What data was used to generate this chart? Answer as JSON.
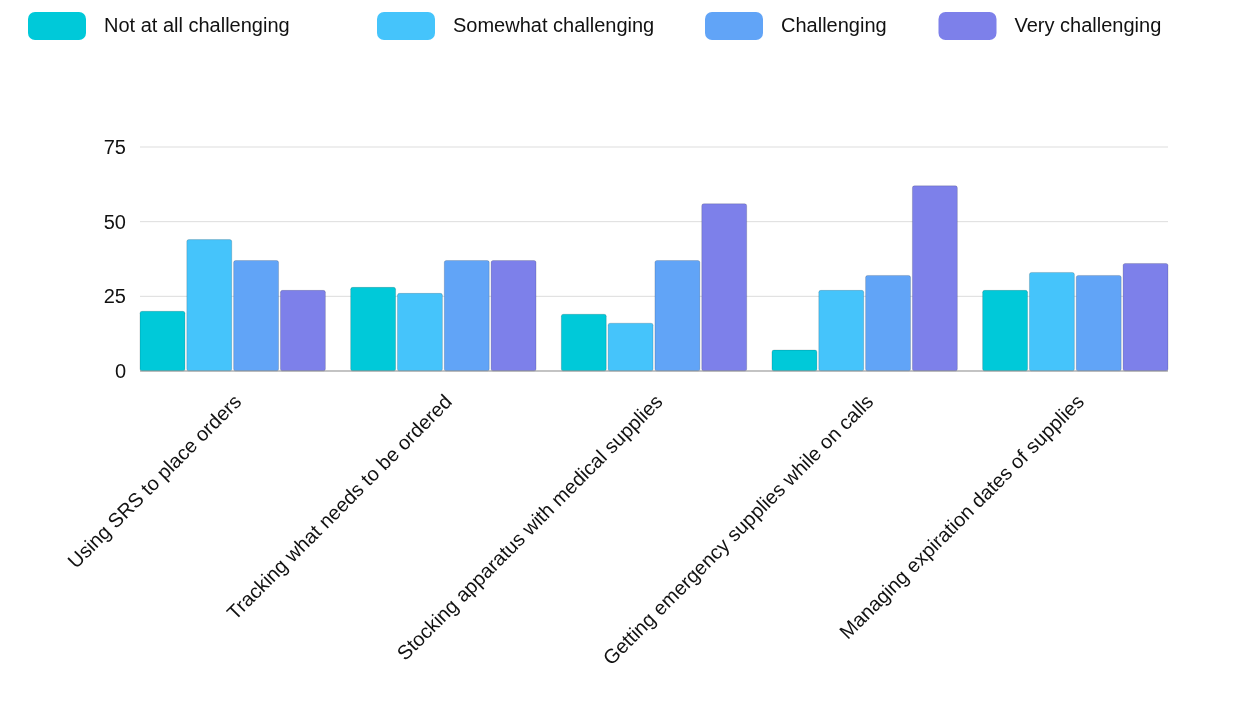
{
  "chart_data": {
    "type": "bar",
    "categories": [
      "Using SRS to place orders",
      "Tracking what needs to be ordered",
      "Stocking apparatus with medical supplies",
      "Getting emergency supplies while on calls",
      "Managing expiration dates of supplies"
    ],
    "series": [
      {
        "name": "Not at all challenging",
        "color": "#00c9d9",
        "values": [
          20,
          28,
          19,
          7,
          27
        ]
      },
      {
        "name": "Somewhat challenging",
        "color": "#45c4fb",
        "values": [
          44,
          26,
          16,
          27,
          33
        ]
      },
      {
        "name": "Challenging",
        "color": "#61a4f7",
        "values": [
          37,
          37,
          37,
          32,
          32
        ]
      },
      {
        "name": "Very challenging",
        "color": "#7d80ea",
        "values": [
          27,
          37,
          56,
          62,
          36
        ]
      }
    ],
    "ylim": [
      0,
      75
    ],
    "yticks": [
      0,
      25,
      50,
      75
    ],
    "grid": "y",
    "legend": "top"
  }
}
